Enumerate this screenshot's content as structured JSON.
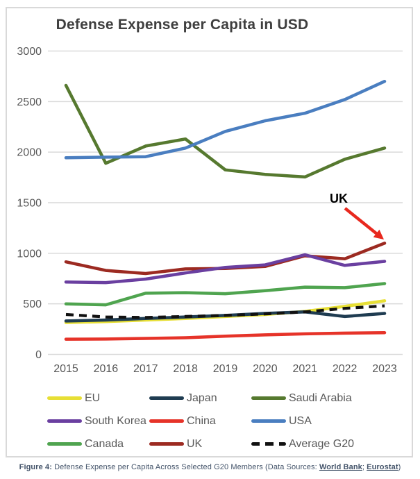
{
  "figure": {
    "colors": {
      "grid": "#d9d9d9",
      "axis_text": "#595959",
      "title_text": "#3f3f3f",
      "box_border": "#d9d9d9",
      "annotation_arrow": "#e8281e",
      "caption_text": "#44546a"
    }
  },
  "chart_data": {
    "type": "line",
    "title": "Defense Expense per Capita in USD",
    "xlabel": "",
    "ylabel": "",
    "x": [
      2015,
      2016,
      2017,
      2018,
      2019,
      2020,
      2021,
      2022,
      2023
    ],
    "ylim": [
      0,
      3000
    ],
    "yticks": [
      0,
      500,
      1000,
      1500,
      2000,
      2500,
      3000
    ],
    "grid": true,
    "legend_position": "bottom",
    "series": [
      {
        "name": "China",
        "color": "#e63329",
        "dashed": false,
        "legend_slot": 4,
        "values": [
          150,
          152,
          158,
          165,
          180,
          193,
          203,
          210,
          215
        ]
      },
      {
        "name": "Canada",
        "color": "#4fa44f",
        "dashed": false,
        "legend_slot": 6,
        "values": [
          500,
          490,
          605,
          610,
          600,
          630,
          665,
          660,
          700
        ]
      },
      {
        "name": "EU",
        "color": "#e7df35",
        "dashed": false,
        "legend_slot": 0,
        "values": [
          315,
          325,
          340,
          355,
          375,
          395,
          425,
          475,
          530
        ]
      },
      {
        "name": "Japan",
        "color": "#1f3c51",
        "dashed": false,
        "legend_slot": 1,
        "values": [
          330,
          340,
          355,
          370,
          385,
          405,
          420,
          375,
          405
        ]
      },
      {
        "name": "Average G20",
        "color": "#111111",
        "dashed": true,
        "legend_slot": 8,
        "values": [
          395,
          370,
          365,
          375,
          385,
          400,
          420,
          455,
          480
        ]
      },
      {
        "name": "UK",
        "color": "#9c2a21",
        "dashed": false,
        "legend_slot": 7,
        "values": [
          915,
          830,
          800,
          845,
          850,
          870,
          975,
          945,
          1100
        ]
      },
      {
        "name": "South Korea",
        "color": "#6a3fa0",
        "dashed": false,
        "legend_slot": 3,
        "values": [
          715,
          710,
          745,
          805,
          860,
          885,
          985,
          880,
          920
        ]
      },
      {
        "name": "Saudi Arabia",
        "color": "#56792f",
        "dashed": false,
        "legend_slot": 2,
        "values": [
          2660,
          1890,
          2060,
          2130,
          1825,
          1780,
          1755,
          1930,
          2040
        ]
      },
      {
        "name": "USA",
        "color": "#4a7ec0",
        "dashed": false,
        "legend_slot": 5,
        "values": [
          1945,
          1950,
          1955,
          2040,
          2205,
          2310,
          2385,
          2520,
          2700
        ]
      }
    ],
    "annotation": {
      "label": "UK",
      "label_x": 478,
      "label_y": 280,
      "arrow_tail": [
        487,
        288
      ],
      "arrow_tip": [
        543,
        333
      ]
    }
  },
  "caption": {
    "prefix": "Figure 4:",
    "body": " Defense Expense per Capita Across Selected G20 Members (Data Sources: ",
    "link1": "World Bank",
    "separator": "; ",
    "link2": "Eurostat",
    "suffix": ")"
  }
}
